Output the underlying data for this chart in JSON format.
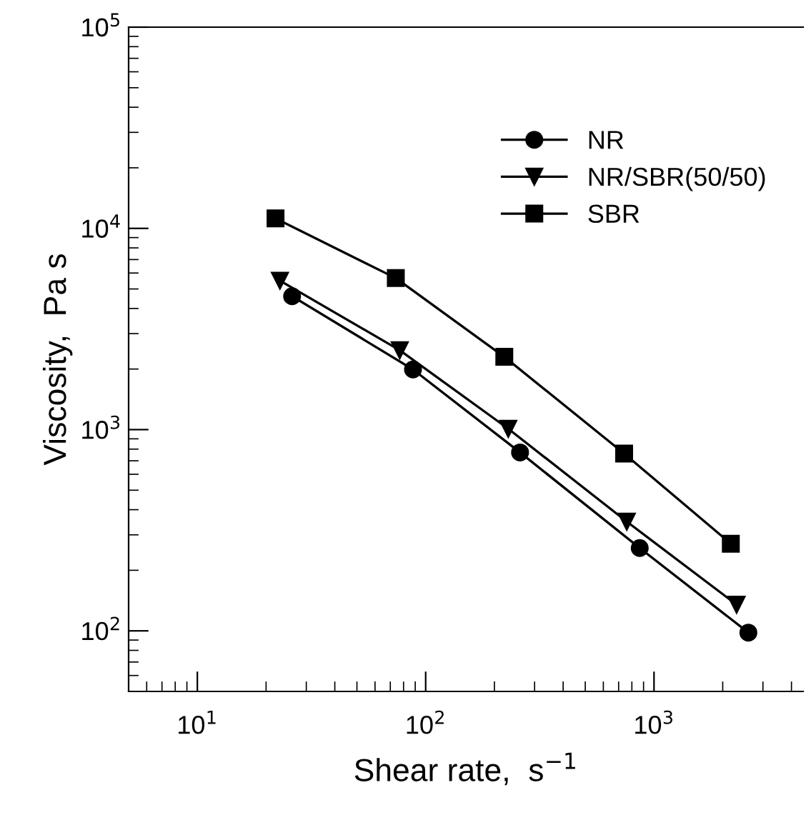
{
  "chart_data": {
    "type": "line",
    "xlabel": "Shear rate,  s$^{−1}$",
    "ylabel": "Viscosity,  Pa s",
    "log": "xy",
    "xlim": [
      5,
      4500
    ],
    "ylim": [
      50,
      100000
    ],
    "xticks": [
      {
        "value": 10,
        "label": "10$^{1}$"
      },
      {
        "value": 100,
        "label": "10$^{2}$"
      },
      {
        "value": 1000,
        "label": "10$^{3}$"
      }
    ],
    "yticks": [
      {
        "value": 100,
        "label": "10$^{2}$"
      },
      {
        "value": 1000,
        "label": "10$^{3}$"
      },
      {
        "value": 10000,
        "label": "10$^{4}$"
      },
      {
        "value": 100000,
        "label": "10$^{5}$"
      }
    ],
    "grid": false,
    "legend": "top right",
    "line_style": "solid",
    "series": [
      {
        "name": "NR",
        "color": "#000000",
        "marker": "circle",
        "x": [
          26,
          88,
          259,
          866,
          2590
        ],
        "values": [
          4600,
          1990,
          770,
          258,
          98
        ]
      },
      {
        "name": "NR/SBR(50/50)",
        "color": "#000000",
        "marker": "triangle",
        "x": [
          23,
          77,
          230,
          760,
          2300
        ],
        "values": [
          5500,
          2480,
          1010,
          349,
          135
        ]
      },
      {
        "name": "SBR",
        "color": "#000000",
        "marker": "square",
        "x": [
          22,
          74,
          221,
          740,
          2170
        ],
        "values": [
          11200,
          5660,
          2300,
          760,
          271
        ]
      }
    ]
  }
}
